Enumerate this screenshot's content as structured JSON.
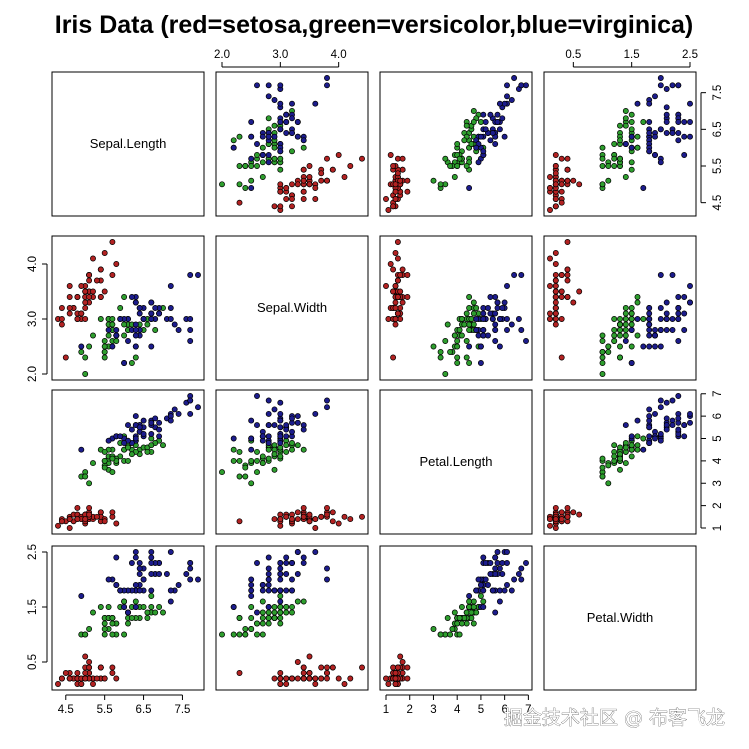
{
  "watermark": "掘金技术社区 @ 布客飞龙",
  "chart_data": {
    "type": "scatter",
    "subtype": "scatterplot-matrix",
    "title": "Iris Data (red=setosa,green=versicolor,blue=virginica)",
    "variables": [
      "Sepal.Length",
      "Sepal.Width",
      "Petal.Length",
      "Petal.Width"
    ],
    "ranges": {
      "Sepal.Length": [
        4.3,
        7.9
      ],
      "Sepal.Width": [
        2.0,
        4.4
      ],
      "Petal.Length": [
        1.0,
        6.9
      ],
      "Petal.Width": [
        0.1,
        2.5
      ]
    },
    "ticks": {
      "Sepal.Length": [
        "4.5",
        "5.5",
        "6.5",
        "7.5"
      ],
      "Sepal.Width": [
        "2.0",
        "3.0",
        "4.0"
      ],
      "Petal.Length": [
        "1",
        "2",
        "3",
        "4",
        "5",
        "6",
        "7"
      ],
      "Petal.Width": [
        "0.5",
        "1.5",
        "2.5"
      ]
    },
    "grid": false,
    "legend": "none",
    "marker": "filled circle with black outline",
    "series": [
      {
        "name": "setosa",
        "color": "#b22222",
        "columns": [
          "Sepal.Length",
          "Sepal.Width",
          "Petal.Length",
          "Petal.Width"
        ],
        "points": [
          [
            5.1,
            3.5,
            1.4,
            0.2
          ],
          [
            4.9,
            3.0,
            1.4,
            0.2
          ],
          [
            4.7,
            3.2,
            1.3,
            0.2
          ],
          [
            4.6,
            3.1,
            1.5,
            0.2
          ],
          [
            5.0,
            3.6,
            1.4,
            0.2
          ],
          [
            5.4,
            3.9,
            1.7,
            0.4
          ],
          [
            4.6,
            3.4,
            1.4,
            0.3
          ],
          [
            5.0,
            3.4,
            1.5,
            0.2
          ],
          [
            4.4,
            2.9,
            1.4,
            0.2
          ],
          [
            4.9,
            3.1,
            1.5,
            0.1
          ],
          [
            5.4,
            3.7,
            1.5,
            0.2
          ],
          [
            4.8,
            3.4,
            1.6,
            0.2
          ],
          [
            4.8,
            3.0,
            1.4,
            0.1
          ],
          [
            4.3,
            3.0,
            1.1,
            0.1
          ],
          [
            5.8,
            4.0,
            1.2,
            0.2
          ],
          [
            5.7,
            4.4,
            1.5,
            0.4
          ],
          [
            5.4,
            3.9,
            1.3,
            0.4
          ],
          [
            5.1,
            3.5,
            1.4,
            0.3
          ],
          [
            5.7,
            3.8,
            1.7,
            0.3
          ],
          [
            5.1,
            3.8,
            1.5,
            0.3
          ],
          [
            5.4,
            3.4,
            1.7,
            0.2
          ],
          [
            5.1,
            3.7,
            1.5,
            0.4
          ],
          [
            4.6,
            3.6,
            1.0,
            0.2
          ],
          [
            5.1,
            3.3,
            1.7,
            0.5
          ],
          [
            4.8,
            3.4,
            1.9,
            0.2
          ],
          [
            5.0,
            3.0,
            1.6,
            0.2
          ],
          [
            5.0,
            3.4,
            1.6,
            0.4
          ],
          [
            5.2,
            3.5,
            1.5,
            0.2
          ],
          [
            5.2,
            3.4,
            1.4,
            0.2
          ],
          [
            4.7,
            3.2,
            1.6,
            0.2
          ],
          [
            4.8,
            3.1,
            1.6,
            0.2
          ],
          [
            5.4,
            3.4,
            1.5,
            0.4
          ],
          [
            5.2,
            4.1,
            1.5,
            0.1
          ],
          [
            5.5,
            4.2,
            1.4,
            0.2
          ],
          [
            4.9,
            3.1,
            1.5,
            0.2
          ],
          [
            5.0,
            3.2,
            1.2,
            0.2
          ],
          [
            5.5,
            3.5,
            1.3,
            0.2
          ],
          [
            4.9,
            3.6,
            1.4,
            0.1
          ],
          [
            4.4,
            3.0,
            1.3,
            0.2
          ],
          [
            5.1,
            3.4,
            1.5,
            0.2
          ],
          [
            5.0,
            3.5,
            1.3,
            0.3
          ],
          [
            4.5,
            2.3,
            1.3,
            0.3
          ],
          [
            4.4,
            3.2,
            1.3,
            0.2
          ],
          [
            5.0,
            3.5,
            1.6,
            0.6
          ],
          [
            5.1,
            3.8,
            1.9,
            0.4
          ],
          [
            4.8,
            3.0,
            1.4,
            0.3
          ],
          [
            5.1,
            3.8,
            1.6,
            0.2
          ],
          [
            4.6,
            3.2,
            1.4,
            0.2
          ],
          [
            5.3,
            3.7,
            1.5,
            0.2
          ],
          [
            5.0,
            3.3,
            1.4,
            0.2
          ]
        ]
      },
      {
        "name": "versicolor",
        "color": "#2e9e2e",
        "columns": [
          "Sepal.Length",
          "Sepal.Width",
          "Petal.Length",
          "Petal.Width"
        ],
        "points": [
          [
            7.0,
            3.2,
            4.7,
            1.4
          ],
          [
            6.4,
            3.2,
            4.5,
            1.5
          ],
          [
            6.9,
            3.1,
            4.9,
            1.5
          ],
          [
            5.5,
            2.3,
            4.0,
            1.3
          ],
          [
            6.5,
            2.8,
            4.6,
            1.5
          ],
          [
            5.7,
            2.8,
            4.5,
            1.3
          ],
          [
            6.3,
            3.3,
            4.7,
            1.6
          ],
          [
            4.9,
            2.4,
            3.3,
            1.0
          ],
          [
            6.6,
            2.9,
            4.6,
            1.3
          ],
          [
            5.2,
            2.7,
            3.9,
            1.4
          ],
          [
            5.0,
            2.0,
            3.5,
            1.0
          ],
          [
            5.9,
            3.0,
            4.2,
            1.5
          ],
          [
            6.0,
            2.2,
            4.0,
            1.0
          ],
          [
            6.1,
            2.9,
            4.7,
            1.4
          ],
          [
            5.6,
            2.9,
            3.6,
            1.3
          ],
          [
            6.7,
            3.1,
            4.4,
            1.4
          ],
          [
            5.6,
            3.0,
            4.5,
            1.5
          ],
          [
            5.8,
            2.7,
            4.1,
            1.0
          ],
          [
            6.2,
            2.2,
            4.5,
            1.5
          ],
          [
            5.6,
            2.5,
            3.9,
            1.1
          ],
          [
            5.9,
            3.2,
            4.8,
            1.8
          ],
          [
            6.1,
            2.8,
            4.0,
            1.3
          ],
          [
            6.3,
            2.5,
            4.9,
            1.5
          ],
          [
            6.1,
            2.8,
            4.7,
            1.2
          ],
          [
            6.4,
            2.9,
            4.3,
            1.3
          ],
          [
            6.6,
            3.0,
            4.4,
            1.4
          ],
          [
            6.8,
            2.8,
            4.8,
            1.4
          ],
          [
            6.7,
            3.0,
            5.0,
            1.7
          ],
          [
            6.0,
            2.9,
            4.5,
            1.5
          ],
          [
            5.7,
            2.6,
            3.5,
            1.0
          ],
          [
            5.5,
            2.4,
            3.8,
            1.1
          ],
          [
            5.5,
            2.4,
            3.7,
            1.0
          ],
          [
            5.8,
            2.7,
            3.9,
            1.2
          ],
          [
            6.0,
            2.7,
            5.1,
            1.6
          ],
          [
            5.4,
            3.0,
            4.5,
            1.5
          ],
          [
            6.0,
            3.4,
            4.5,
            1.6
          ],
          [
            6.7,
            3.1,
            4.7,
            1.5
          ],
          [
            6.3,
            2.3,
            4.4,
            1.3
          ],
          [
            5.6,
            3.0,
            4.1,
            1.3
          ],
          [
            5.5,
            2.5,
            4.0,
            1.3
          ],
          [
            5.5,
            2.6,
            4.4,
            1.2
          ],
          [
            6.1,
            3.0,
            4.6,
            1.4
          ],
          [
            5.8,
            2.6,
            4.0,
            1.2
          ],
          [
            5.0,
            2.3,
            3.3,
            1.0
          ],
          [
            5.6,
            2.7,
            4.2,
            1.3
          ],
          [
            5.7,
            3.0,
            4.2,
            1.2
          ],
          [
            5.7,
            2.9,
            4.2,
            1.3
          ],
          [
            6.2,
            2.9,
            4.3,
            1.3
          ],
          [
            5.1,
            2.5,
            3.0,
            1.1
          ],
          [
            5.7,
            2.8,
            4.1,
            1.3
          ]
        ]
      },
      {
        "name": "virginica",
        "color": "#1c1c8c",
        "columns": [
          "Sepal.Length",
          "Sepal.Width",
          "Petal.Length",
          "Petal.Width"
        ],
        "points": [
          [
            6.3,
            3.3,
            6.0,
            2.5
          ],
          [
            5.8,
            2.7,
            5.1,
            1.9
          ],
          [
            7.1,
            3.0,
            5.9,
            2.1
          ],
          [
            6.3,
            2.9,
            5.6,
            1.8
          ],
          [
            6.5,
            3.0,
            5.8,
            2.2
          ],
          [
            7.6,
            3.0,
            6.6,
            2.1
          ],
          [
            4.9,
            2.5,
            4.5,
            1.7
          ],
          [
            7.3,
            2.9,
            6.3,
            1.8
          ],
          [
            6.7,
            2.5,
            5.8,
            1.8
          ],
          [
            7.2,
            3.6,
            6.1,
            2.5
          ],
          [
            6.5,
            3.2,
            5.1,
            2.0
          ],
          [
            6.4,
            2.7,
            5.3,
            1.9
          ],
          [
            6.8,
            3.0,
            5.5,
            2.1
          ],
          [
            5.7,
            2.5,
            5.0,
            2.0
          ],
          [
            5.8,
            2.8,
            5.1,
            2.4
          ],
          [
            6.4,
            3.2,
            5.3,
            2.3
          ],
          [
            6.5,
            3.0,
            5.5,
            1.8
          ],
          [
            7.7,
            3.8,
            6.7,
            2.2
          ],
          [
            7.7,
            2.6,
            6.9,
            2.3
          ],
          [
            6.0,
            2.2,
            5.0,
            1.5
          ],
          [
            6.9,
            3.2,
            5.7,
            2.3
          ],
          [
            5.6,
            2.8,
            4.9,
            2.0
          ],
          [
            7.7,
            2.8,
            6.7,
            2.0
          ],
          [
            6.3,
            2.7,
            4.9,
            1.8
          ],
          [
            6.7,
            3.3,
            5.7,
            2.1
          ],
          [
            7.2,
            3.2,
            6.0,
            1.8
          ],
          [
            6.2,
            2.8,
            4.8,
            1.8
          ],
          [
            6.1,
            3.0,
            4.9,
            1.8
          ],
          [
            6.4,
            2.8,
            5.6,
            2.1
          ],
          [
            7.2,
            3.0,
            5.8,
            1.6
          ],
          [
            7.4,
            2.8,
            6.1,
            1.9
          ],
          [
            7.9,
            3.8,
            6.4,
            2.0
          ],
          [
            6.4,
            2.8,
            5.6,
            2.2
          ],
          [
            6.3,
            2.8,
            5.1,
            1.5
          ],
          [
            6.1,
            2.6,
            5.6,
            1.4
          ],
          [
            7.7,
            3.0,
            6.1,
            2.3
          ],
          [
            6.3,
            3.4,
            5.6,
            2.4
          ],
          [
            6.4,
            3.1,
            5.5,
            1.8
          ],
          [
            6.0,
            3.0,
            4.8,
            1.8
          ],
          [
            6.9,
            3.1,
            5.4,
            2.1
          ],
          [
            6.7,
            3.1,
            5.6,
            2.4
          ],
          [
            6.9,
            3.1,
            5.1,
            2.3
          ],
          [
            5.8,
            2.7,
            5.1,
            1.9
          ],
          [
            6.8,
            3.2,
            5.9,
            2.3
          ],
          [
            6.7,
            3.3,
            5.7,
            2.5
          ],
          [
            6.7,
            3.0,
            5.2,
            2.3
          ],
          [
            6.3,
            2.5,
            5.0,
            1.9
          ],
          [
            6.5,
            3.0,
            5.2,
            2.0
          ],
          [
            6.2,
            3.4,
            5.4,
            2.3
          ],
          [
            5.9,
            3.0,
            5.1,
            1.8
          ]
        ]
      }
    ]
  }
}
